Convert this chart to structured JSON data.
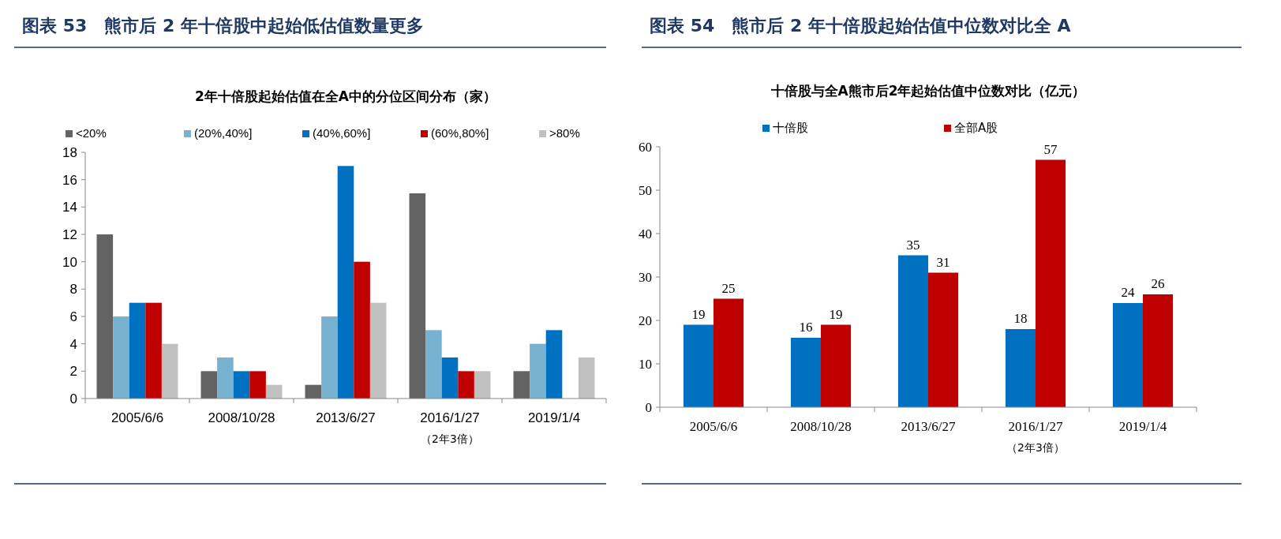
{
  "chart_data": [
    {
      "type": "bar",
      "title": "图表 53　熊市后 2 年十倍股中起始低估值数量更多",
      "subtitle": "2年十倍股起始估值在全A中的分位区间分布（家）",
      "categories": [
        "2005/6/6",
        "2008/10/28",
        "2013/6/27",
        "2016/1/27",
        "2019/1/4"
      ],
      "series": [
        {
          "name": "<20%",
          "color": "#636363",
          "values": [
            12,
            2,
            1,
            15,
            2
          ]
        },
        {
          "name": "(20%,40%]",
          "color": "#77b3d0",
          "values": [
            6,
            3,
            6,
            5,
            4
          ]
        },
        {
          "name": "(40%,60%]",
          "color": "#0070c0",
          "values": [
            7,
            2,
            17,
            3,
            5
          ]
        },
        {
          "name": "(60%,80%]",
          "color": "#c00000",
          "values": [
            7,
            2,
            10,
            2,
            0
          ]
        },
        {
          "name": ">80%",
          "color": "#c0c0c0",
          "values": [
            4,
            1,
            7,
            2,
            3
          ]
        }
      ],
      "ylim": [
        0,
        18
      ],
      "yticks": [
        0,
        2,
        4,
        6,
        8,
        10,
        12,
        14,
        16,
        18
      ],
      "legend": "top",
      "annotations": [
        "（2年3倍）"
      ]
    },
    {
      "type": "bar",
      "title": "图表 54　熊市后 2 年十倍股起始估值中位数对比全 A",
      "subtitle": "十倍股与全A熊市后2年起始估值中位数对比（亿元）",
      "categories": [
        "2005/6/6",
        "2008/10/28",
        "2013/6/27",
        "2016/1/27",
        "2019/1/4"
      ],
      "series": [
        {
          "name": "十倍股",
          "color": "#0070c0",
          "values": [
            19,
            16,
            35,
            18,
            24
          ]
        },
        {
          "name": "全部A股",
          "color": "#c00000",
          "values": [
            25,
            19,
            31,
            57,
            26
          ]
        }
      ],
      "ylim": [
        0,
        60
      ],
      "yticks": [
        0,
        10,
        20,
        30,
        40,
        50,
        60
      ],
      "legend": "top",
      "data_labels": true,
      "annotations": [
        "（2年3倍）"
      ]
    }
  ]
}
